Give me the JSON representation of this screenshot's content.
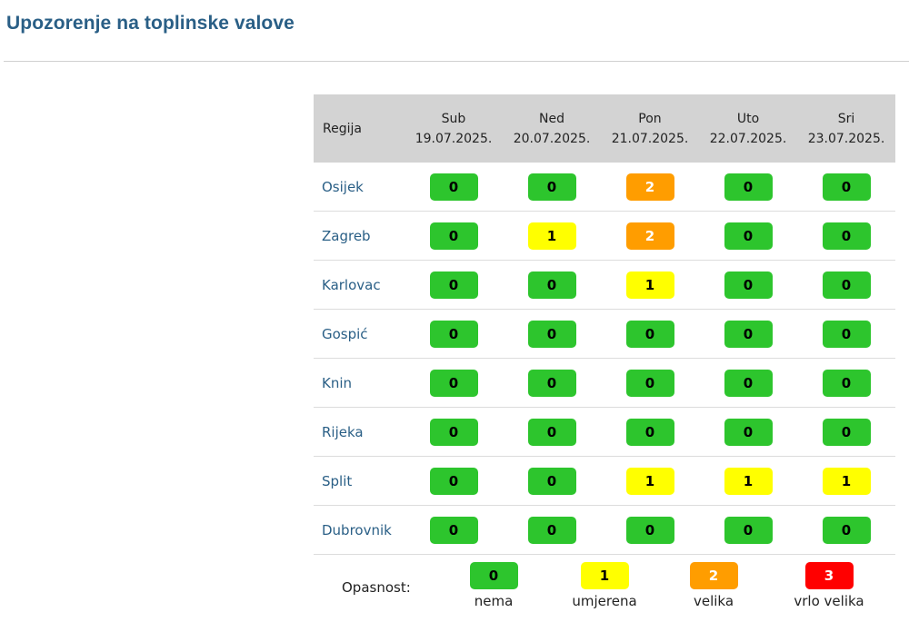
{
  "page": {
    "title": "Upozorenje na toplinske valove"
  },
  "table": {
    "region_header": "Regija",
    "days": [
      {
        "day": "Sub",
        "date": "19.07.2025."
      },
      {
        "day": "Ned",
        "date": "20.07.2025."
      },
      {
        "day": "Pon",
        "date": "21.07.2025."
      },
      {
        "day": "Uto",
        "date": "22.07.2025."
      },
      {
        "day": "Sri",
        "date": "23.07.2025."
      }
    ],
    "rows": [
      {
        "region": "Osijek",
        "levels": [
          "0",
          "0",
          "2",
          "0",
          "0"
        ]
      },
      {
        "region": "Zagreb",
        "levels": [
          "0",
          "1",
          "2",
          "0",
          "0"
        ]
      },
      {
        "region": "Karlovac",
        "levels": [
          "0",
          "0",
          "1",
          "0",
          "0"
        ]
      },
      {
        "region": "Gospić",
        "levels": [
          "0",
          "0",
          "0",
          "0",
          "0"
        ]
      },
      {
        "region": "Knin",
        "levels": [
          "0",
          "0",
          "0",
          "0",
          "0"
        ]
      },
      {
        "region": "Rijeka",
        "levels": [
          "0",
          "0",
          "0",
          "0",
          "0"
        ]
      },
      {
        "region": "Split",
        "levels": [
          "0",
          "0",
          "1",
          "1",
          "1"
        ]
      },
      {
        "region": "Dubrovnik",
        "levels": [
          "0",
          "0",
          "0",
          "0",
          "0"
        ]
      }
    ]
  },
  "legend": {
    "label": "Opasnost:",
    "items": [
      {
        "level": "0",
        "text": "nema"
      },
      {
        "level": "1",
        "text": "umjerena"
      },
      {
        "level": "2",
        "text": "velika"
      },
      {
        "level": "3",
        "text": "vrlo velika"
      }
    ]
  },
  "colors": {
    "level_0": "#2dc52d",
    "level_1": "#ffff00",
    "level_2": "#ff9d00",
    "level_3": "#ff0000",
    "title": "#2a5f86",
    "header_bg": "#d3d3d3"
  }
}
